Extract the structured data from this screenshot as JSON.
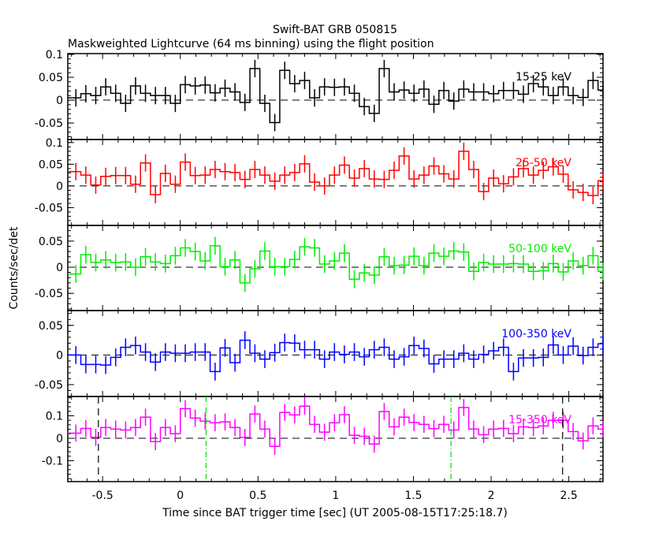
{
  "chart_data": {
    "type": "line",
    "title": "Swift-BAT GRB 050815",
    "subtitle": "Maskweighted Lightcurve (64 ms binning) using the flight position",
    "xlabel": "Time since BAT trigger time [sec] (UT 2005-08-15T17:25:18.7)",
    "ylabel": "Counts/sec/det",
    "xlim": [
      -0.724,
      2.72
    ],
    "bin_width": 0.064,
    "first_bin_center": -0.672,
    "x_ticks": [
      "-0.5",
      "0",
      "0.5",
      "1",
      "1.5",
      "2",
      "2.5"
    ],
    "x_tick_values": [
      -0.5,
      0,
      0.5,
      1,
      1.5,
      2,
      2.5
    ],
    "vertical_markers": [
      {
        "t": -0.527,
        "style": "dashed",
        "color": "#000000"
      },
      {
        "t": 2.46,
        "style": "dashed",
        "color": "#000000"
      },
      {
        "t": 0.166,
        "style": "dashdot",
        "color": "#00e000"
      },
      {
        "t": 1.742,
        "style": "dashdot",
        "color": "#00e000"
      }
    ],
    "series": [
      {
        "name": "15-25 keV",
        "color": "#000000",
        "ylim": [
          -0.086,
          0.1017
        ],
        "err": 0.019,
        "y_ticks": [
          "0.1",
          "0.05",
          "0",
          "-0.05"
        ],
        "y_tick_values": [
          0.1,
          0.05,
          0,
          -0.05
        ],
        "minor": 0.01,
        "values": [
          0.005,
          0.014,
          0.01,
          0.029,
          0.015,
          -0.007,
          0.031,
          0.015,
          0.01,
          0.01,
          -0.007,
          0.034,
          0.031,
          0.033,
          0.016,
          0.026,
          0.018,
          -0.005,
          0.069,
          -0.007,
          -0.049,
          0.065,
          0.036,
          0.043,
          0.005,
          0.029,
          0.028,
          0.029,
          0.015,
          -0.014,
          -0.029,
          0.069,
          0.018,
          0.022,
          0.015,
          0.024,
          -0.009,
          0.021,
          -0.002,
          0.024,
          0.018,
          0.018,
          0.014,
          0.021,
          0.021,
          0.013,
          0.036,
          0.029,
          0.01,
          0.029,
          0.01,
          0.006,
          0.043,
          0.022
        ]
      },
      {
        "name": "25-50 keV",
        "color": "#ff0000",
        "ylim": [
          -0.091,
          0.107
        ],
        "err": 0.02,
        "y_ticks": [
          "0.1",
          "0.05",
          "0",
          "-0.05"
        ],
        "y_tick_values": [
          0.1,
          0.05,
          0,
          -0.05
        ],
        "minor": 0.01,
        "values": [
          0.033,
          0.025,
          0.002,
          0.022,
          0.024,
          0.024,
          0.004,
          0.053,
          -0.02,
          0.029,
          0.004,
          0.055,
          0.024,
          0.025,
          0.038,
          0.033,
          0.031,
          0.015,
          0.038,
          0.025,
          0.011,
          0.025,
          0.031,
          0.051,
          0.009,
          0.0,
          0.025,
          0.048,
          0.018,
          0.04,
          0.016,
          0.015,
          0.036,
          0.069,
          0.016,
          0.025,
          0.046,
          0.028,
          0.016,
          0.08,
          0.038,
          -0.013,
          0.018,
          0.005,
          0.021,
          0.04,
          0.025,
          0.036,
          0.044,
          0.027,
          -0.009,
          -0.015,
          -0.022,
          0.012
        ]
      },
      {
        "name": "50-100 keV",
        "color": "#00ee00",
        "ylim": [
          -0.083,
          0.08
        ],
        "err": 0.017,
        "y_ticks": [
          "0.05",
          "0",
          "-0.05"
        ],
        "y_tick_values": [
          0.05,
          0,
          -0.05
        ],
        "minor": 0.01,
        "values": [
          -0.013,
          0.024,
          0.009,
          0.014,
          0.009,
          0.01,
          0.0,
          0.02,
          0.01,
          0.007,
          0.022,
          0.037,
          0.03,
          0.012,
          0.041,
          0.001,
          0.014,
          -0.03,
          -0.003,
          0.031,
          0.001,
          0.001,
          0.015,
          0.039,
          0.037,
          0.006,
          0.012,
          0.027,
          -0.023,
          -0.011,
          -0.015,
          0.02,
          0.003,
          0.004,
          0.021,
          0.003,
          0.027,
          0.021,
          0.031,
          0.029,
          -0.008,
          0.009,
          0.006,
          0.006,
          0.007,
          0.006,
          -0.008,
          -0.007,
          0.007,
          -0.009,
          0.012,
          0.003,
          0.022,
          -0.008
        ]
      },
      {
        "name": "100-350 keV",
        "color": "#0000ff",
        "ylim": [
          -0.07,
          0.075
        ],
        "err": 0.015,
        "y_ticks": [
          "0.05",
          "0",
          "-0.05"
        ],
        "y_tick_values": [
          0.05,
          0,
          -0.05
        ],
        "minor": 0.01,
        "values": [
          0.0,
          -0.016,
          -0.016,
          -0.017,
          -0.004,
          0.013,
          0.016,
          0.005,
          -0.012,
          0.005,
          0.003,
          0.003,
          0.005,
          0.005,
          -0.028,
          0.012,
          -0.013,
          0.025,
          0.003,
          -0.007,
          0.004,
          0.021,
          0.02,
          0.009,
          0.009,
          -0.007,
          0.005,
          0.001,
          0.005,
          -0.003,
          0.009,
          0.013,
          -0.007,
          -0.003,
          0.016,
          0.011,
          -0.015,
          -0.007,
          -0.007,
          0.003,
          -0.007,
          0.001,
          0.007,
          0.013,
          -0.028,
          -0.005,
          -0.005,
          -0.004,
          0.017,
          0.0,
          0.015,
          -0.001,
          0.013,
          0.019
        ]
      },
      {
        "name": "15-350 keV",
        "color": "#ff00ff",
        "ylim": [
          -0.193,
          0.186
        ],
        "err": 0.038,
        "y_ticks": [
          "0.1",
          "0",
          "-0.1"
        ],
        "y_tick_values": [
          0.1,
          0,
          -0.1
        ],
        "minor": 0.02,
        "values": [
          0.023,
          0.044,
          0.004,
          0.048,
          0.041,
          0.037,
          0.048,
          0.094,
          -0.015,
          0.048,
          0.02,
          0.132,
          0.09,
          0.076,
          0.069,
          0.073,
          0.048,
          0.004,
          0.108,
          0.041,
          -0.036,
          0.115,
          0.104,
          0.143,
          0.062,
          0.027,
          0.069,
          0.105,
          0.013,
          0.009,
          -0.026,
          0.119,
          0.051,
          0.094,
          0.07,
          0.062,
          0.043,
          0.062,
          0.037,
          0.137,
          0.041,
          0.016,
          0.041,
          0.044,
          0.02,
          0.051,
          0.048,
          0.055,
          0.08,
          0.08,
          0.03,
          -0.012,
          0.055,
          0.041
        ]
      }
    ]
  }
}
